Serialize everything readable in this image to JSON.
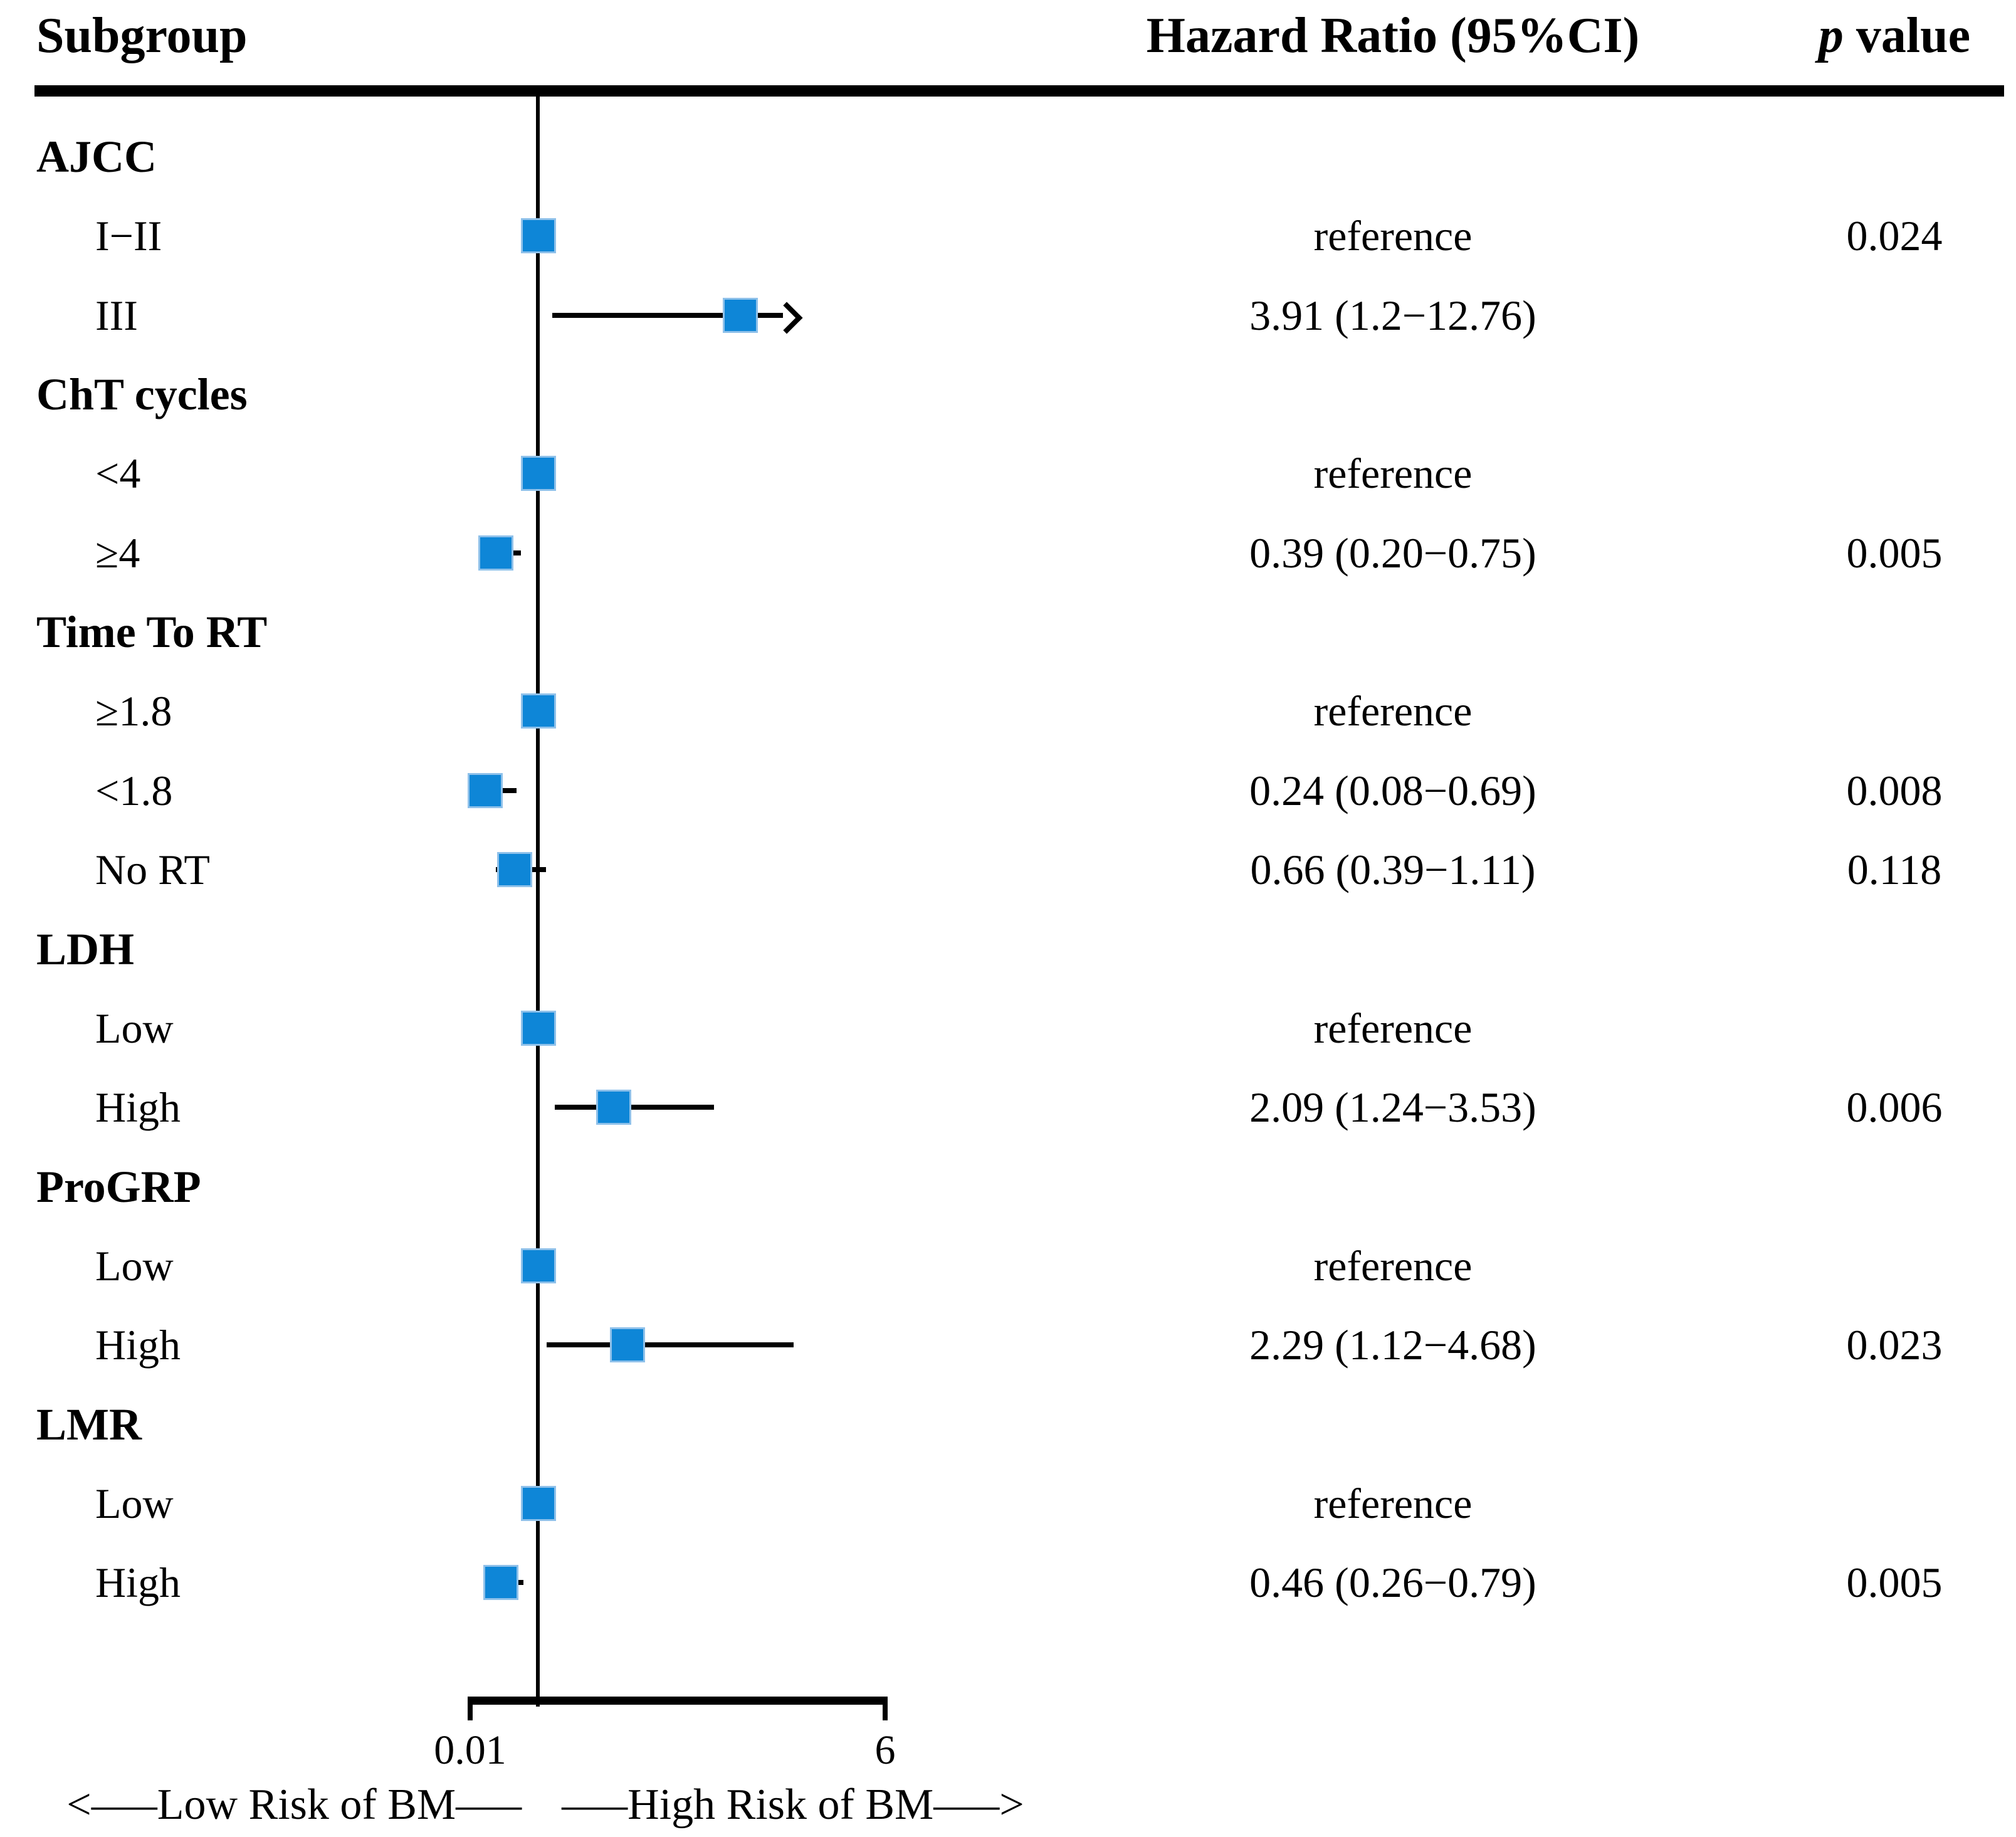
{
  "header": {
    "subgroup": "Subgroup",
    "hazard_ratio": "Hazard Ratio (95%CI)",
    "p_italic": "p",
    "p_rest": " value"
  },
  "axis": {
    "min_label": "0.01",
    "max_label": "6"
  },
  "footer": {
    "left": "<–––Low Risk of BM–––",
    "right": "–––High Risk of BM–––>"
  },
  "colors": {
    "marker_blue": "#0e86d7",
    "marker_halo": "#8fc1ea",
    "line_black": "#000000"
  },
  "chart_data": {
    "type": "forest",
    "title": "",
    "xlabel_left": "Low Risk of BM",
    "xlabel_right": "High Risk of BM",
    "axis": {
      "min": 0.01,
      "max": 6,
      "scale": "linear",
      "ref_line": 1,
      "tick_labels": [
        "0.01",
        "6"
      ],
      "grid": false
    },
    "columns": [
      "Subgroup",
      "Hazard Ratio (95%CI)",
      "p value"
    ],
    "rows": [
      {
        "kind": "section",
        "label": "AJCC"
      },
      {
        "kind": "item",
        "label": "I−II",
        "reference": true,
        "hr": 1.0,
        "hr_text": "reference",
        "p": "0.024"
      },
      {
        "kind": "item",
        "label": "III",
        "hr": 3.91,
        "ci_low": 1.2,
        "ci_high": 12.76,
        "hr_text": "3.91 (1.2−12.76)",
        "p": "",
        "arrow": true
      },
      {
        "kind": "section",
        "label": "ChT cycles"
      },
      {
        "kind": "item",
        "label": "<4",
        "reference": true,
        "hr": 1.0,
        "hr_text": "reference",
        "p": ""
      },
      {
        "kind": "item",
        "label": "≥4",
        "hr": 0.39,
        "ci_low": 0.2,
        "ci_high": 0.75,
        "hr_text": "0.39 (0.20−0.75)",
        "p": "0.005"
      },
      {
        "kind": "section",
        "label": "Time To RT"
      },
      {
        "kind": "item",
        "label": "≥1.8",
        "reference": true,
        "hr": 1.0,
        "hr_text": "reference",
        "p": ""
      },
      {
        "kind": "item",
        "label": "<1.8",
        "hr": 0.24,
        "ci_low": 0.08,
        "ci_high": 0.69,
        "hr_text": "0.24 (0.08−0.69)",
        "p": "0.008"
      },
      {
        "kind": "item",
        "label": "No RT",
        "hr": 0.66,
        "ci_low": 0.39,
        "ci_high": 1.11,
        "hr_text": "0.66 (0.39−1.11)",
        "p": "0.118"
      },
      {
        "kind": "section",
        "label": "LDH"
      },
      {
        "kind": "item",
        "label": "Low",
        "reference": true,
        "hr": 1.0,
        "hr_text": "reference",
        "p": ""
      },
      {
        "kind": "item",
        "label": "High",
        "hr": 2.09,
        "ci_low": 1.24,
        "ci_high": 3.53,
        "hr_text": "2.09 (1.24−3.53)",
        "p": "0.006"
      },
      {
        "kind": "section",
        "label": "ProGRP"
      },
      {
        "kind": "item",
        "label": "Low",
        "reference": true,
        "hr": 1.0,
        "hr_text": "reference",
        "p": ""
      },
      {
        "kind": "item",
        "label": "High",
        "hr": 2.29,
        "ci_low": 1.12,
        "ci_high": 4.68,
        "hr_text": "2.29 (1.12−4.68)",
        "p": "0.023"
      },
      {
        "kind": "section",
        "label": "LMR"
      },
      {
        "kind": "item",
        "label": "Low",
        "reference": true,
        "hr": 1.0,
        "hr_text": "reference",
        "p": ""
      },
      {
        "kind": "item",
        "label": "High",
        "hr": 0.46,
        "ci_low": 0.26,
        "ci_high": 0.79,
        "hr_text": "0.46 (0.26−0.79)",
        "p": "0.005"
      }
    ]
  }
}
